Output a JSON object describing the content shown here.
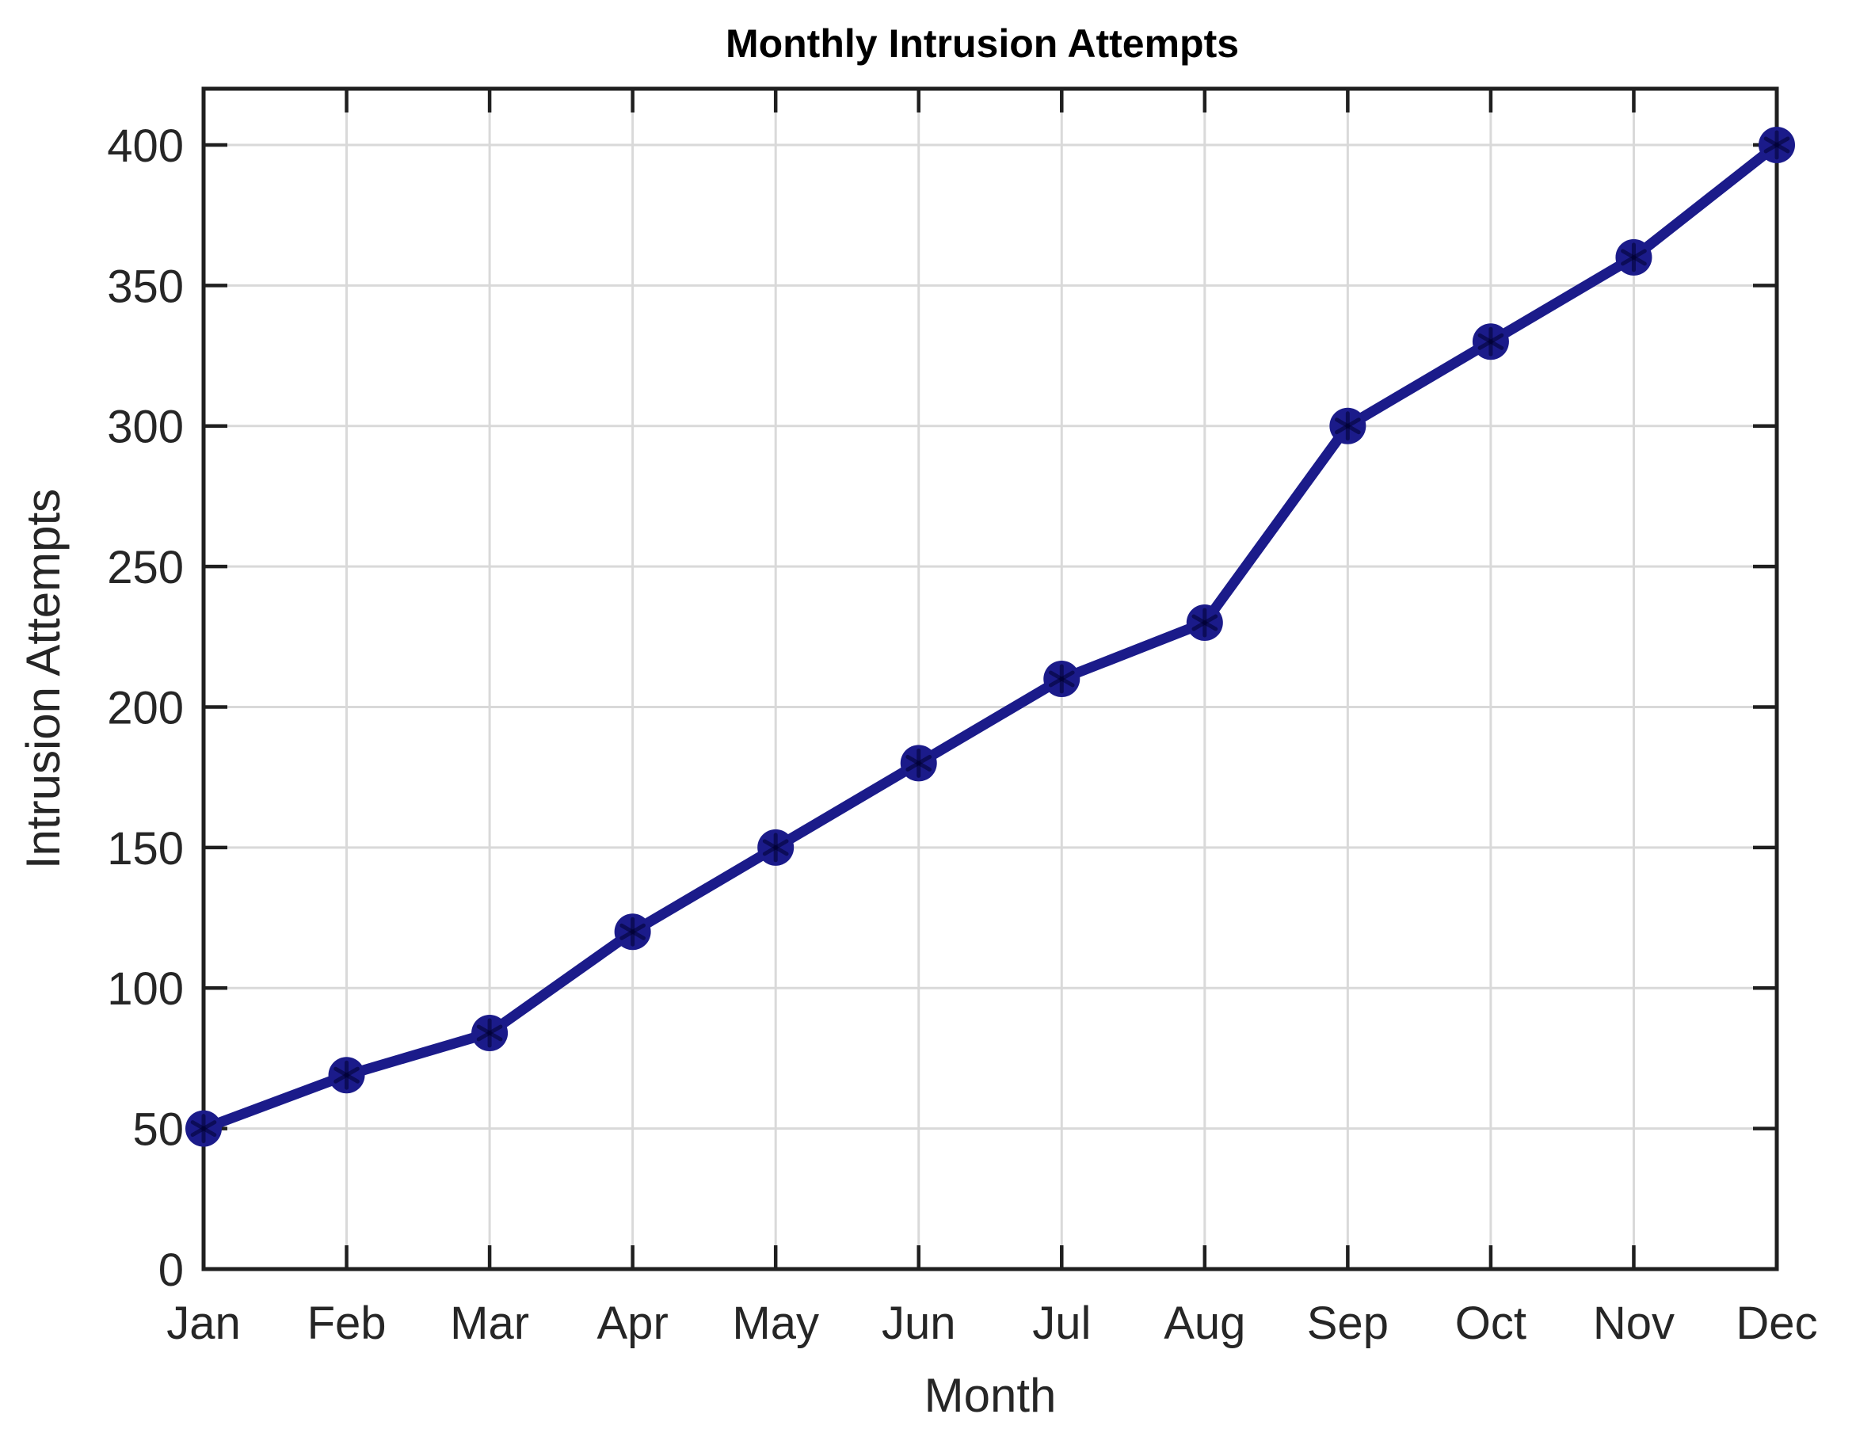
{
  "figure": {
    "title": "Monthly Intrusion Attempts",
    "xlabel": "Month",
    "ylabel": "Intrusion Attempts"
  },
  "chart_data": {
    "type": "line",
    "title": "Monthly Intrusion Attempts",
    "xlabel": "Month",
    "ylabel": "Intrusion Attempts",
    "categories": [
      "Jan",
      "Feb",
      "Mar",
      "Apr",
      "May",
      "Jun",
      "Jul",
      "Aug",
      "Sep",
      "Oct",
      "Nov",
      "Dec"
    ],
    "series": [
      {
        "name": "Intrusion Attempts",
        "values": [
          50,
          69,
          84,
          120,
          150,
          180,
          210,
          230,
          300,
          330,
          360,
          400
        ]
      }
    ],
    "ylim": [
      0,
      420
    ],
    "yticks": [
      0,
      50,
      100,
      150,
      200,
      250,
      300,
      350,
      400
    ],
    "grid": true,
    "legend": "none",
    "marker": "filled-circle-with-asterisk",
    "colors": {
      "line": "#1b1b8a",
      "marker_fill": "#1b1b8a",
      "marker_asterisk": "#00002f",
      "grid": "#d9d9d9",
      "axis_frame": "#1f1f1f",
      "tick_text": "#262626",
      "title_text": "#000000",
      "background": "#ffffff"
    }
  }
}
